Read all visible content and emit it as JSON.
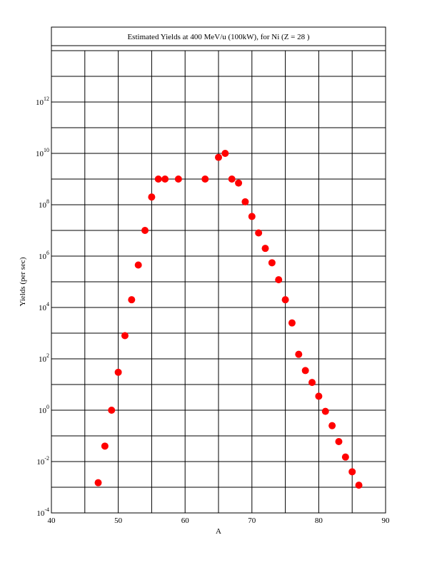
{
  "chart_data": {
    "type": "scatter",
    "title": "Estimated Yields at 400 MeV/u (100kW), for Ni (Z = 28 )",
    "xlabel": "A",
    "ylabel": "Yields (per sec)",
    "xlim": [
      40,
      90
    ],
    "ylim_log10": [
      -4,
      14
    ],
    "y_scale": "log",
    "x_ticks": [
      40,
      50,
      60,
      70,
      80,
      90
    ],
    "y_ticks_exponents": [
      -4,
      -2,
      0,
      2,
      4,
      6,
      8,
      10,
      12
    ],
    "grid": true,
    "marker_color": "#ff0000",
    "points": [
      {
        "x": 47,
        "y": 0.0015
      },
      {
        "x": 48,
        "y": 0.04
      },
      {
        "x": 49,
        "y": 1.0
      },
      {
        "x": 50,
        "y": 30
      },
      {
        "x": 51,
        "y": 800
      },
      {
        "x": 52,
        "y": 20000
      },
      {
        "x": 53,
        "y": 450000
      },
      {
        "x": 54,
        "y": 10000000
      },
      {
        "x": 55,
        "y": 200000000
      },
      {
        "x": 56,
        "y": 1000000000
      },
      {
        "x": 57,
        "y": 1000000000
      },
      {
        "x": 59,
        "y": 1000000000
      },
      {
        "x": 63,
        "y": 1000000000
      },
      {
        "x": 65,
        "y": 7000000000
      },
      {
        "x": 66,
        "y": 10000000000
      },
      {
        "x": 67,
        "y": 1000000000
      },
      {
        "x": 68,
        "y": 700000000
      },
      {
        "x": 69,
        "y": 130000000
      },
      {
        "x": 70,
        "y": 35000000
      },
      {
        "x": 71,
        "y": 8000000
      },
      {
        "x": 72,
        "y": 2000000
      },
      {
        "x": 73,
        "y": 550000
      },
      {
        "x": 74,
        "y": 120000
      },
      {
        "x": 75,
        "y": 20000
      },
      {
        "x": 76,
        "y": 2500
      },
      {
        "x": 77,
        "y": 150
      },
      {
        "x": 78,
        "y": 35
      },
      {
        "x": 79,
        "y": 12
      },
      {
        "x": 80,
        "y": 3.5
      },
      {
        "x": 81,
        "y": 0.9
      },
      {
        "x": 82,
        "y": 0.25
      },
      {
        "x": 83,
        "y": 0.06
      },
      {
        "x": 84,
        "y": 0.015
      },
      {
        "x": 85,
        "y": 0.004
      },
      {
        "x": 86,
        "y": 0.0012
      }
    ]
  }
}
